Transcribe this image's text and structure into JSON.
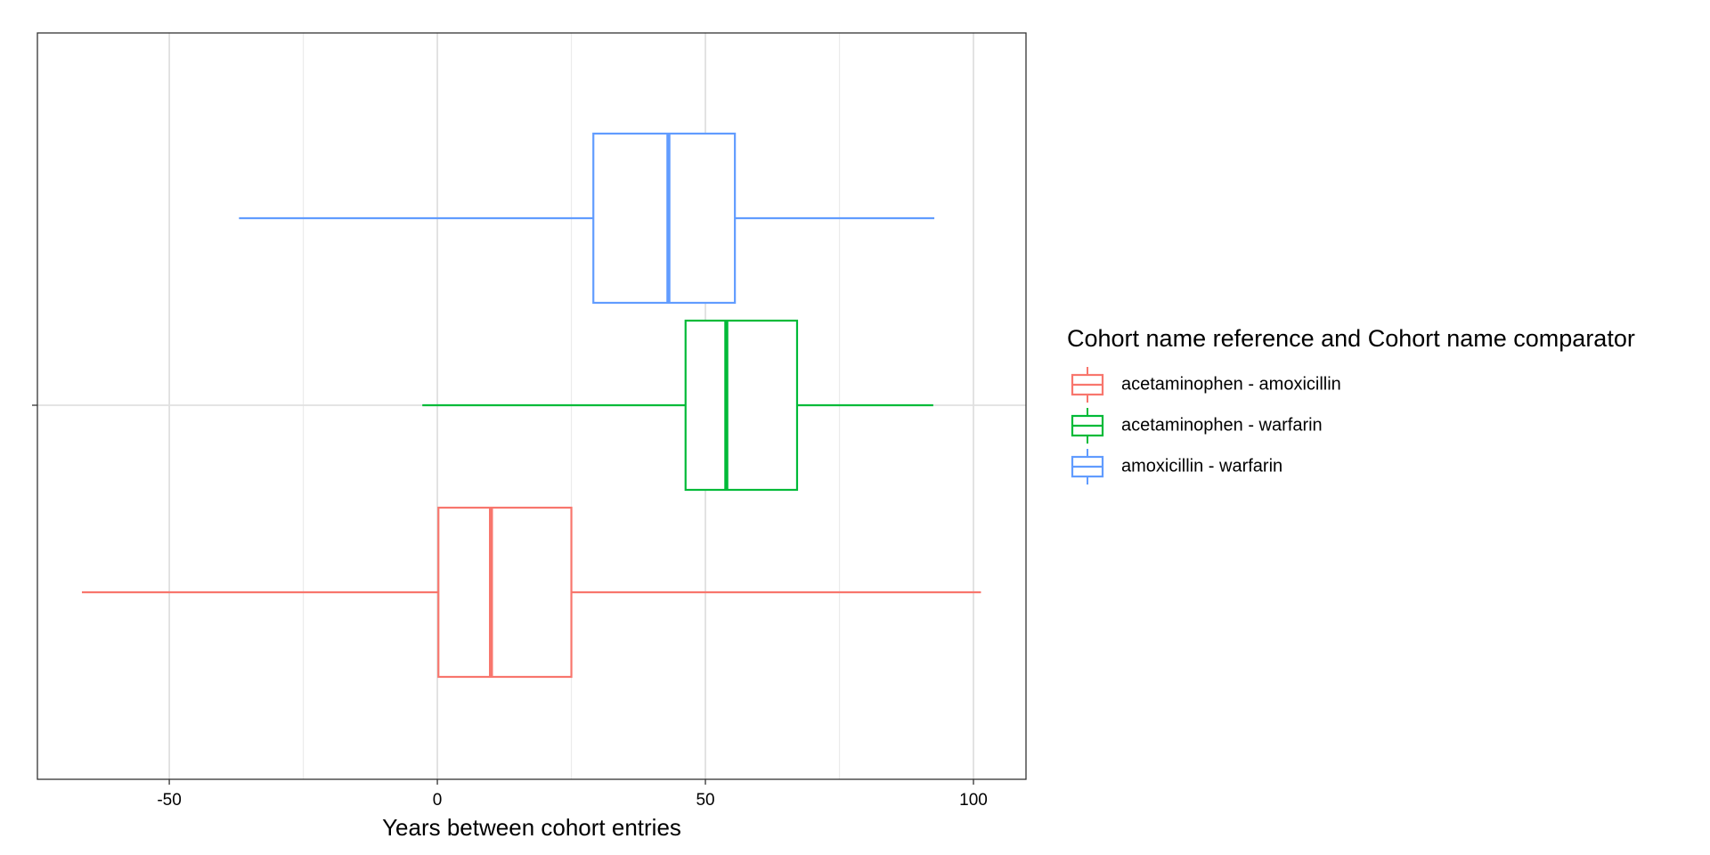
{
  "chart_data": {
    "type": "boxplot",
    "orientation": "horizontal",
    "x_label": "Years between cohort entries",
    "categories": [
      null
    ],
    "legend_title": "Cohort name reference and Cohort name comparator",
    "legend_position": "right",
    "xlim": [
      -74.6,
      109.8
    ],
    "xticks": [
      -50,
      0,
      50,
      100
    ],
    "minor_grid": [
      -25,
      25,
      75
    ],
    "grid": true,
    "series": [
      {
        "name": "acetaminophen - amoxicillin",
        "color": "#F8766D",
        "min": -66.3,
        "q1": 0.2,
        "median": 10.0,
        "q3": 25.0,
        "max": 101.4
      },
      {
        "name": "acetaminophen - warfarin",
        "color": "#00BA38",
        "min": -2.8,
        "q1": 46.3,
        "median": 53.9,
        "q3": 67.1,
        "max": 92.5
      },
      {
        "name": "amoxicillin - warfarin",
        "color": "#619CFF",
        "min": -37.0,
        "q1": 29.1,
        "median": 43.1,
        "q3": 55.5,
        "max": 92.7
      }
    ]
  }
}
